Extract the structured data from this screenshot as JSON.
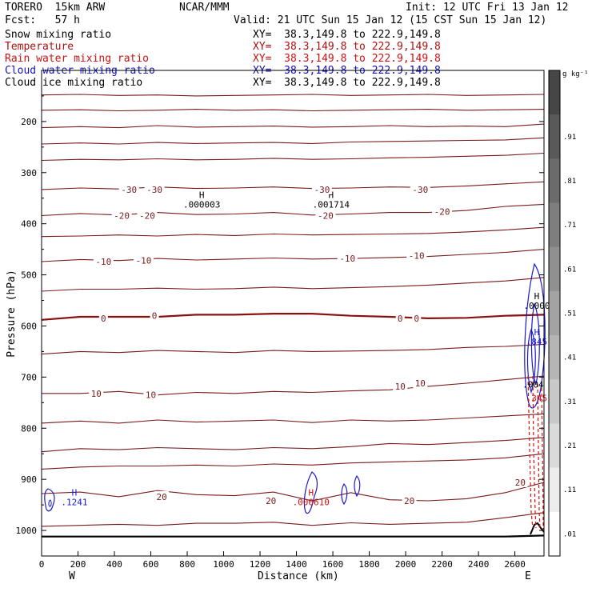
{
  "header": {
    "model": "TORERO  15km ARW",
    "org": "NCAR/MMM",
    "init": "Init: 12 UTC Fri 13 Jan 12",
    "fcst": "Fcst:   57 h",
    "valid": "Valid: 21 UTC Sun 15 Jan 12 (15 CST Sun 15 Jan 12)"
  },
  "fields": [
    {
      "name": "Snow mixing ratio",
      "xy": "XY=  38.3,149.8 to 222.9,149.8",
      "color": "#000000"
    },
    {
      "name": "Temperature",
      "xy": "XY=  38.3,149.8 to 222.9,149.8",
      "color": "#aa1111"
    },
    {
      "name": "Rain water mixing ratio",
      "xy": "XY=  38.3,149.8 to 222.9,149.8",
      "color": "#cc1111"
    },
    {
      "name": "Cloud water mixing ratio",
      "xy": "XY=  38.3,149.8 to 222.9,149.8",
      "color": "#1111bb"
    },
    {
      "name": "Cloud ice mixing ratio",
      "xy": "XY=  38.3,149.8 to 222.9,149.8",
      "color": "#000000"
    }
  ],
  "colors": {
    "isotherm": "#7a1a1a",
    "zero_isotherm": "#8b1010",
    "rain": "#dd1111",
    "cloud_water": "#1a1acc",
    "terrain": "#000000"
  },
  "chart_data": {
    "type": "line",
    "title": "",
    "xlabel": "Distance (km)",
    "ylabel": "Pressure (hPa)",
    "x_ticks": [
      0,
      200,
      400,
      600,
      800,
      1000,
      1200,
      1400,
      1600,
      1800,
      2000,
      2200,
      2400,
      2600
    ],
    "y_ticks": [
      200,
      300,
      400,
      500,
      600,
      700,
      800,
      900,
      1000
    ],
    "xlim": [
      0,
      2760
    ],
    "ylim": [
      1050,
      100
    ],
    "x_end_labels": {
      "left": "W",
      "right": "E"
    },
    "colorbar": {
      "unit": "g kg⁻¹",
      "labels": [
        ".91",
        ".81",
        ".71",
        ".61",
        ".51",
        ".41",
        ".31",
        ".21",
        ".11",
        ".01"
      ],
      "levels": [
        0.01,
        0.11,
        0.21,
        0.31,
        0.41,
        0.51,
        0.61,
        0.71,
        0.81,
        0.91,
        1.01
      ]
    },
    "isotherm_labels": [
      {
        "x": 480,
        "p": 333,
        "text": "-30"
      },
      {
        "x": 620,
        "p": 333,
        "text": "-30"
      },
      {
        "x": 1540,
        "p": 333,
        "text": "-30"
      },
      {
        "x": 2080,
        "p": 333,
        "text": "-30"
      },
      {
        "x": 440,
        "p": 384,
        "text": "-20"
      },
      {
        "x": 580,
        "p": 384,
        "text": "-20"
      },
      {
        "x": 1560,
        "p": 384,
        "text": "-20"
      },
      {
        "x": 2200,
        "p": 376,
        "text": "-20"
      },
      {
        "x": 340,
        "p": 474,
        "text": "-10"
      },
      {
        "x": 560,
        "p": 472,
        "text": "-10"
      },
      {
        "x": 1680,
        "p": 468,
        "text": "-10"
      },
      {
        "x": 2060,
        "p": 462,
        "text": "-10"
      },
      {
        "x": 340,
        "p": 585,
        "text": "0"
      },
      {
        "x": 620,
        "p": 580,
        "text": "0"
      },
      {
        "x": 1970,
        "p": 585,
        "text": "0"
      },
      {
        "x": 2060,
        "p": 585,
        "text": "0"
      },
      {
        "x": 300,
        "p": 732,
        "text": "10"
      },
      {
        "x": 600,
        "p": 735,
        "text": "10"
      },
      {
        "x": 1970,
        "p": 718,
        "text": "10"
      },
      {
        "x": 2080,
        "p": 712,
        "text": "10"
      },
      {
        "x": 660,
        "p": 934,
        "text": "20"
      },
      {
        "x": 1260,
        "p": 942,
        "text": "20"
      },
      {
        "x": 2020,
        "p": 942,
        "text": "20"
      },
      {
        "x": 2630,
        "p": 906,
        "text": "20"
      }
    ],
    "extrema": [
      {
        "x": 880,
        "p": 350,
        "mark": "H",
        "value": ".000003",
        "color": "#000000"
      },
      {
        "x": 1590,
        "p": 350,
        "mark": "H",
        "value": ".001714",
        "color": "#000000"
      },
      {
        "x": 180,
        "p": 932,
        "mark": "H",
        "value": ".1241",
        "color": "#1a1acc"
      },
      {
        "x": 1480,
        "p": 932,
        "mark": "H",
        "value": ".000610",
        "color": "#cc1111"
      },
      {
        "x": 2720,
        "p": 548,
        "mark": "H",
        "value": ".0000",
        "color": "#000000"
      },
      {
        "x": 2720,
        "p": 618,
        "mark": "H",
        "value": ".845",
        "color": "#1a1acc"
      },
      {
        "x": 2700,
        "p": 702,
        "mark": "",
        "value": ".004",
        "color": "#000000"
      },
      {
        "x": 2720,
        "p": 728,
        "mark": "",
        "value": ".345",
        "color": "#cc1111"
      }
    ],
    "isotherms": [
      {
        "p": [
          148,
          147,
          149,
          148,
          150,
          149,
          148,
          147,
          149,
          148,
          147,
          149,
          148,
          147
        ]
      },
      {
        "p": [
          178,
          177,
          179,
          178,
          176,
          178,
          177,
          179,
          178,
          177,
          176,
          178,
          177,
          176
        ]
      },
      {
        "p": [
          212,
          210,
          212,
          208,
          211,
          210,
          209,
          211,
          210,
          208,
          210,
          209,
          210,
          205
        ]
      },
      {
        "p": [
          244,
          242,
          244,
          241,
          243,
          242,
          241,
          243,
          240,
          239,
          238,
          237,
          236,
          232
        ]
      },
      {
        "p": [
          276,
          274,
          275,
          273,
          275,
          274,
          272,
          274,
          273,
          271,
          270,
          268,
          266,
          262
        ]
      },
      {
        "p": [
          333,
          330,
          332,
          328,
          331,
          330,
          328,
          331,
          330,
          328,
          329,
          326,
          322,
          318
        ]
      },
      {
        "p": [
          384,
          380,
          383,
          378,
          382,
          381,
          378,
          383,
          381,
          378,
          378,
          374,
          366,
          362
        ]
      },
      {
        "p": [
          425,
          424,
          422,
          424,
          421,
          423,
          420,
          422,
          421,
          420,
          419,
          416,
          412,
          407
        ]
      },
      {
        "p": [
          474,
          470,
          472,
          468,
          471,
          469,
          467,
          469,
          468,
          466,
          464,
          460,
          456,
          450
        ]
      },
      {
        "p": [
          532,
          528,
          528,
          526,
          528,
          527,
          524,
          527,
          525,
          523,
          520,
          516,
          512,
          505
        ]
      },
      {
        "p": [
          588,
          582,
          582,
          582,
          578,
          578,
          576,
          576,
          580,
          582,
          585,
          584,
          580,
          578
        ]
      },
      {
        "p": [
          655,
          650,
          652,
          648,
          650,
          652,
          648,
          650,
          649,
          648,
          646,
          642,
          640,
          636
        ]
      },
      {
        "p": [
          732,
          732,
          728,
          735,
          730,
          732,
          728,
          730,
          727,
          725,
          718,
          712,
          705,
          698
        ]
      },
      {
        "p": [
          790,
          786,
          790,
          784,
          788,
          786,
          784,
          789,
          784,
          786,
          784,
          780,
          776,
          772
        ]
      },
      {
        "p": [
          846,
          840,
          842,
          838,
          840,
          842,
          838,
          840,
          836,
          830,
          832,
          828,
          824,
          818
        ]
      },
      {
        "p": [
          880,
          876,
          874,
          874,
          872,
          874,
          870,
          872,
          868,
          866,
          864,
          862,
          858,
          850
        ]
      },
      {
        "p": [
          928,
          925,
          934,
          922,
          930,
          932,
          925,
          942,
          926,
          940,
          942,
          938,
          926,
          906
        ]
      },
      {
        "p": [
          992,
          990,
          988,
          990,
          986,
          986,
          984,
          990,
          985,
          988,
          986,
          984,
          975,
          965
        ]
      }
    ],
    "terrain_p": [
      1012,
      1012,
      1012,
      1012,
      1012,
      1012,
      1012,
      1012,
      1012,
      1012,
      1012,
      1012,
      1012,
      1010
    ]
  }
}
